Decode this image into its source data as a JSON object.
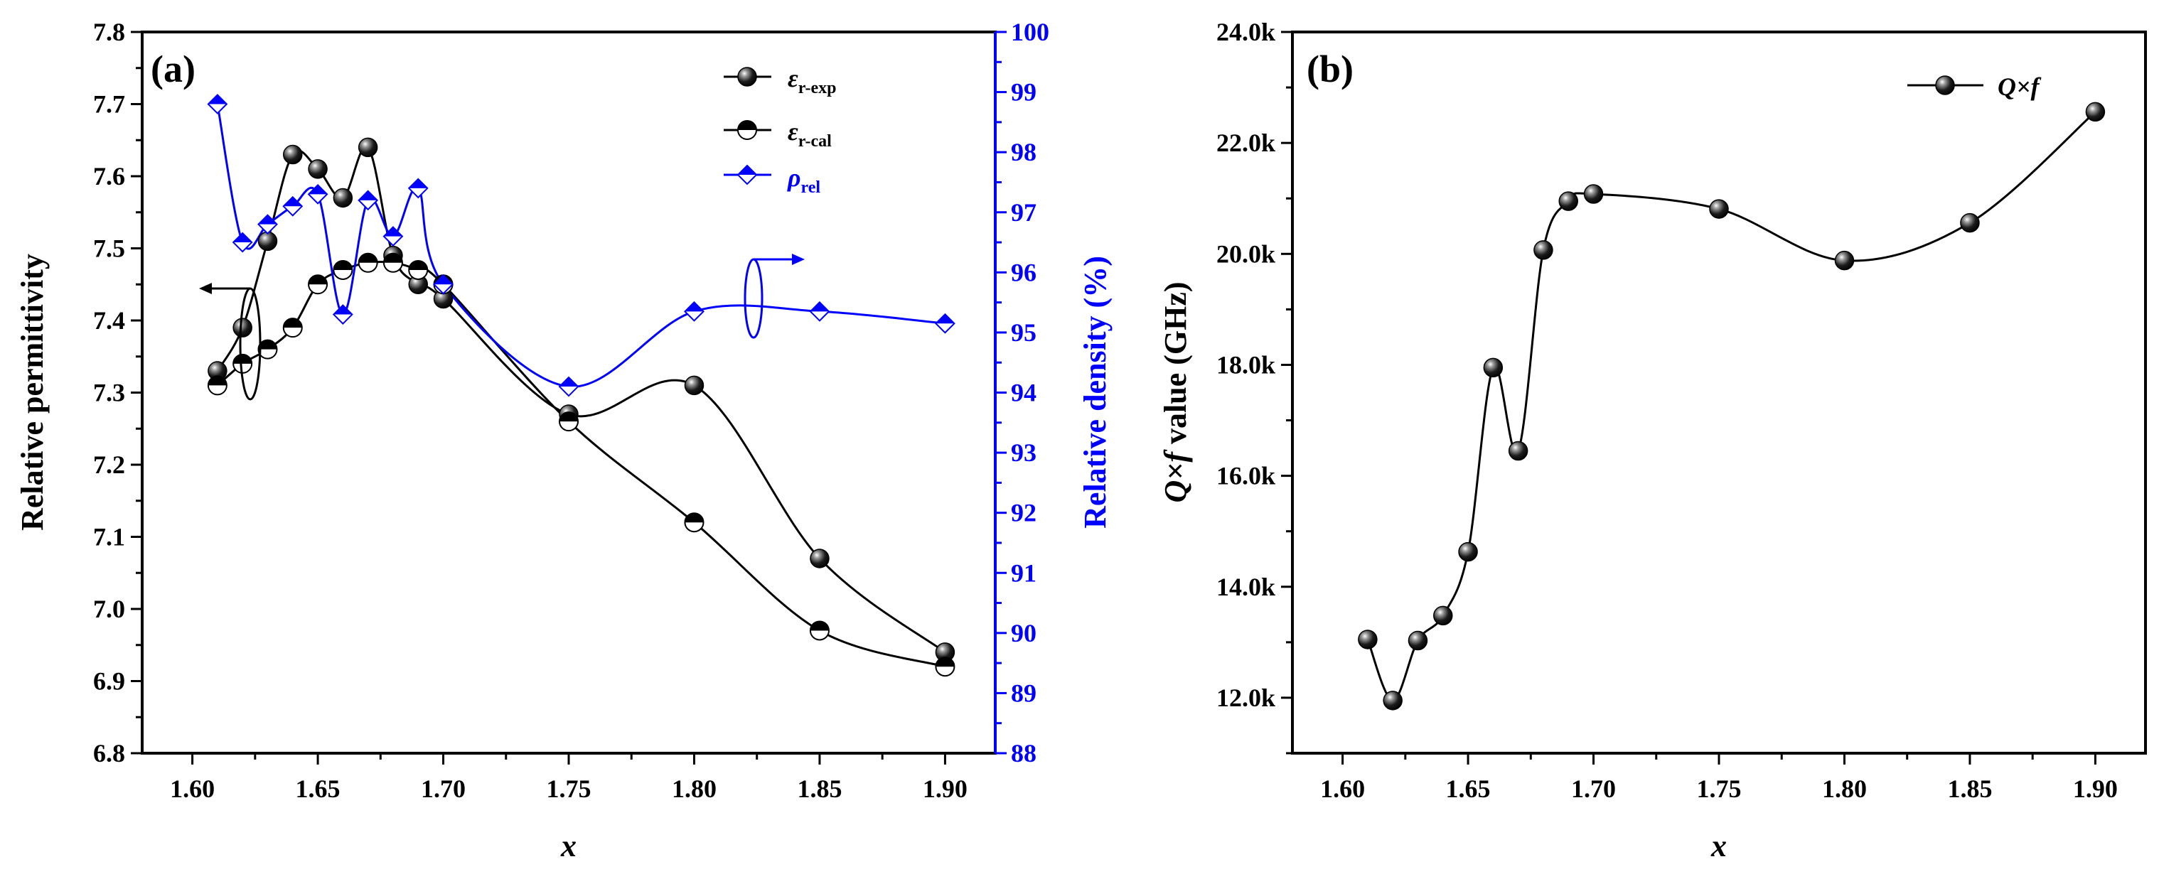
{
  "chart_data": [
    {
      "panel_label": "(a)",
      "type": "line",
      "xlabel": "x",
      "ylabel": "Relative permittivity",
      "y2label": "Relative density (%)",
      "xlim": [
        1.58,
        1.92
      ],
      "ylim": [
        6.8,
        7.8
      ],
      "y2lim": [
        88,
        100
      ],
      "xticks": [
        "1.60",
        "1.65",
        "1.70",
        "1.75",
        "1.80",
        "1.85",
        "1.90"
      ],
      "yticks": [
        "6.8",
        "6.9",
        "7.0",
        "7.1",
        "7.2",
        "7.3",
        "7.4",
        "7.5",
        "7.6",
        "7.7",
        "7.8"
      ],
      "y2ticks": [
        "88",
        "89",
        "90",
        "91",
        "92",
        "93",
        "94",
        "95",
        "96",
        "97",
        "98",
        "99",
        "100"
      ],
      "legend_position": "top-right",
      "series": [
        {
          "name": "εr-exp",
          "name_main": "ε",
          "name_sub": "r-exp",
          "axis": "left",
          "color": "#000000",
          "marker": "filled-sphere",
          "x": [
            1.61,
            1.62,
            1.63,
            1.64,
            1.65,
            1.66,
            1.67,
            1.68,
            1.69,
            1.7,
            1.75,
            1.8,
            1.85,
            1.9
          ],
          "y": [
            7.33,
            7.39,
            7.51,
            7.63,
            7.61,
            7.57,
            7.64,
            7.49,
            7.45,
            7.43,
            7.27,
            7.31,
            7.07,
            6.94
          ]
        },
        {
          "name": "εr-cal",
          "name_main": "ε",
          "name_sub": "r-cal",
          "axis": "left",
          "color": "#000000",
          "marker": "half-filled-circle",
          "x": [
            1.61,
            1.62,
            1.63,
            1.64,
            1.65,
            1.66,
            1.67,
            1.68,
            1.69,
            1.7,
            1.75,
            1.8,
            1.85,
            1.9
          ],
          "y": [
            7.31,
            7.34,
            7.36,
            7.39,
            7.45,
            7.47,
            7.48,
            7.48,
            7.47,
            7.45,
            7.26,
            7.12,
            6.97,
            6.92
          ]
        },
        {
          "name": "ρrel",
          "name_main": "ρ",
          "name_sub": "rel",
          "axis": "right",
          "color": "#0000ff",
          "marker": "half-filled-diamond",
          "x": [
            1.61,
            1.62,
            1.63,
            1.64,
            1.65,
            1.66,
            1.67,
            1.68,
            1.69,
            1.7,
            1.75,
            1.8,
            1.85,
            1.9
          ],
          "y": [
            98.8,
            96.5,
            96.8,
            97.1,
            97.3,
            95.3,
            97.2,
            96.6,
            97.4,
            95.8,
            94.1,
            95.35,
            95.35,
            95.15
          ]
        }
      ]
    },
    {
      "panel_label": "(b)",
      "type": "line",
      "xlabel": "x",
      "ylabel_main": "Q×f",
      "ylabel_rest": " value (GHz)",
      "xlim": [
        1.58,
        1.92
      ],
      "ylim": [
        11000,
        24000
      ],
      "xticks": [
        "1.60",
        "1.65",
        "1.70",
        "1.75",
        "1.80",
        "1.85",
        "1.90"
      ],
      "yticks": [
        "12.0k",
        "14.0k",
        "16.0k",
        "18.0k",
        "20.0k",
        "22.0k",
        "24.0k"
      ],
      "legend_position": "top-right",
      "series": [
        {
          "name": "Q×f",
          "color": "#000000",
          "marker": "filled-sphere",
          "x": [
            1.61,
            1.62,
            1.63,
            1.64,
            1.65,
            1.66,
            1.67,
            1.68,
            1.69,
            1.7,
            1.75,
            1.8,
            1.85,
            1.9
          ],
          "y": [
            13050,
            11950,
            13030,
            13480,
            14630,
            17950,
            16450,
            20070,
            20950,
            21080,
            20810,
            19880,
            20560,
            22560
          ]
        }
      ]
    }
  ]
}
